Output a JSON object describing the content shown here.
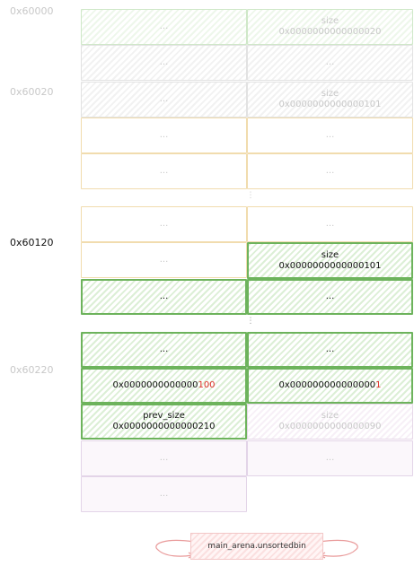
{
  "addresses": {
    "a60000": "0x60000",
    "a60020": "0x60020",
    "a60120": "0x60120",
    "a60220": "0x60220"
  },
  "cells": {
    "ellipsis": "...",
    "size_label": "size",
    "prev_size_label": "prev_size",
    "size_0x20": "0x0000000000000020",
    "size_0x101_top": "0x0000000000000101",
    "size_0x101_mid": "0x0000000000000101",
    "val_100_prefix": "0x0000000000000",
    "val_100_suffix": "100",
    "val_1_prefix": "0x000000000000000",
    "val_1_suffix": "1",
    "prev_size_0x210": "0x0000000000000210",
    "size_0x90": "0x0000000000000090"
  },
  "arena": {
    "label": "main_arena.unsortedbin"
  },
  "colors": {
    "green_border": "#6db35c",
    "red_highlight": "#e0302a",
    "yellow_border": "#f1dcae",
    "lavender_border": "#e3d4e8",
    "arena_pink": "#fbe0e0"
  }
}
